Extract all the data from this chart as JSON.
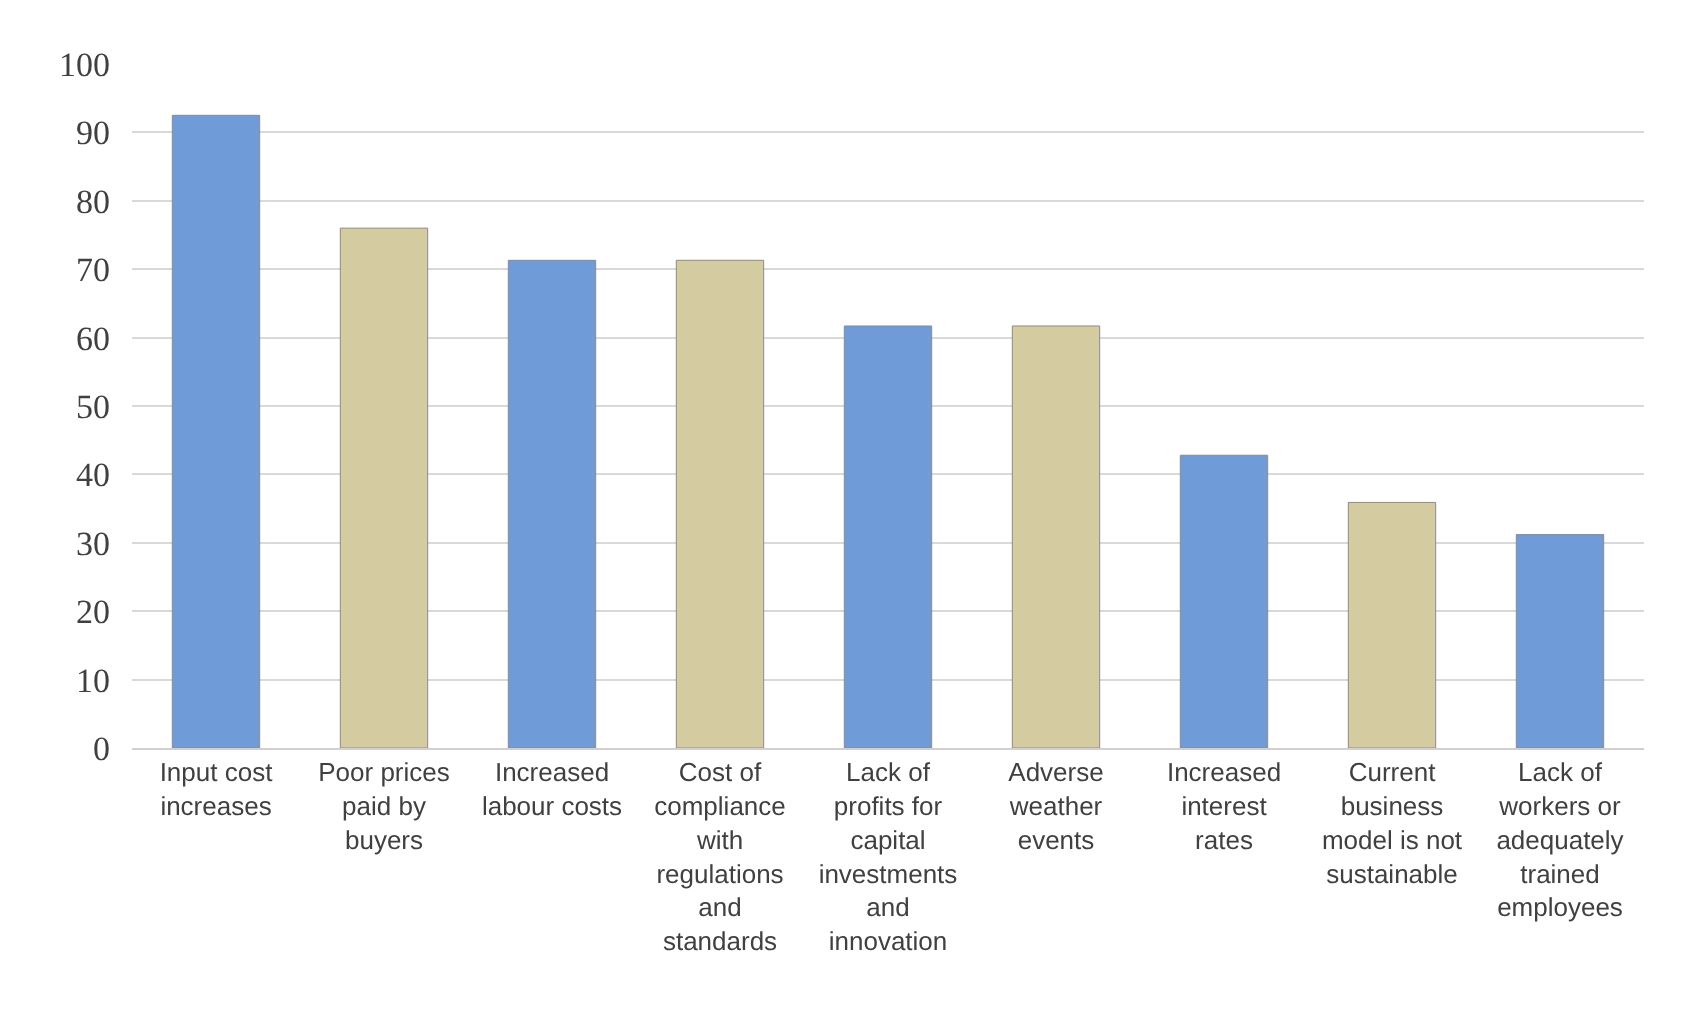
{
  "chart_data": {
    "type": "bar",
    "categories": [
      "Input cost\nincreases",
      "Poor prices\npaid by\nbuyers",
      "Increased\nlabour costs",
      "Cost of\ncompliance\nwith\nregulations\nand\nstandards",
      "Lack of\nprofits for\ncapital\ninvestments\nand\ninnovation",
      "Adverse\nweather\nevents",
      "Increased\ninterest\nrates",
      "Current\nbusiness\nmodel is not\nsustainable",
      "Lack of\nworkers or\nadequately\ntrained\nemployees"
    ],
    "values": [
      92.5,
      76,
      71.3,
      71.3,
      61.7,
      61.7,
      42.8,
      35.9,
      31.2
    ],
    "colors": [
      "#6f9bd8",
      "#d4cca0",
      "#6f9bd8",
      "#d4cca0",
      "#6f9bd8",
      "#d4cca0",
      "#6f9bd8",
      "#d4cca0",
      "#6f9bd8"
    ],
    "ylim": [
      0,
      100
    ],
    "yticks": [
      0,
      10,
      20,
      30,
      40,
      50,
      60,
      70,
      80,
      90,
      100
    ],
    "grid": "y"
  }
}
